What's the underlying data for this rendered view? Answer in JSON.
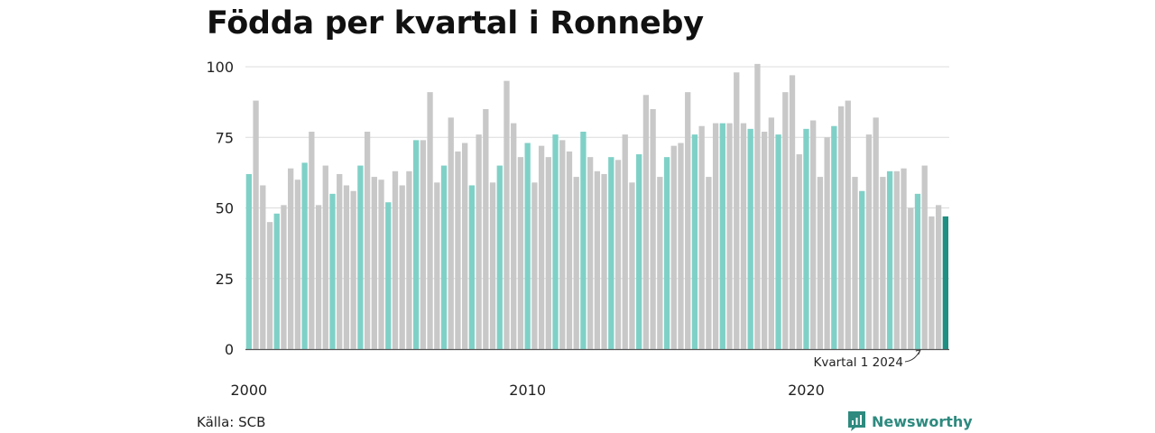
{
  "chart_data": {
    "type": "bar",
    "title": "Födda per kvartal i Ronneby",
    "xlabel": "",
    "ylabel": "",
    "ylim": [
      0,
      100
    ],
    "yticks": [
      0,
      25,
      50,
      75,
      100
    ],
    "x_tick_labels": [
      {
        "label": "2000",
        "index": 0
      },
      {
        "label": "2010",
        "index": 40
      },
      {
        "label": "2020",
        "index": 80
      }
    ],
    "grid": true,
    "legend": "none",
    "colors": {
      "q1": "#7fd1c7",
      "other": "#c8c8c8",
      "latest": "#1e8f82"
    },
    "annotation": {
      "text": "Kvartal 1 2024",
      "index": 100
    },
    "values": [
      62,
      88,
      58,
      45,
      48,
      51,
      64,
      60,
      66,
      77,
      51,
      65,
      55,
      62,
      58,
      56,
      65,
      77,
      61,
      60,
      52,
      63,
      58,
      63,
      74,
      74,
      91,
      59,
      65,
      82,
      70,
      73,
      58,
      76,
      85,
      59,
      65,
      95,
      80,
      68,
      73,
      59,
      72,
      68,
      76,
      74,
      70,
      61,
      77,
      68,
      63,
      62,
      68,
      67,
      76,
      59,
      69,
      90,
      85,
      61,
      68,
      72,
      73,
      91,
      76,
      79,
      61,
      80,
      80,
      80,
      98,
      80,
      78,
      101,
      77,
      82,
      76,
      91,
      97,
      69,
      78,
      81,
      61,
      75,
      79,
      86,
      88,
      61,
      56,
      76,
      82,
      61,
      63,
      63,
      64,
      50,
      55,
      65,
      47,
      51,
      47
    ]
  },
  "source": "Källa: SCB",
  "brand": {
    "name": "Newsworthy",
    "icon": "newsworthy-logo-icon"
  }
}
